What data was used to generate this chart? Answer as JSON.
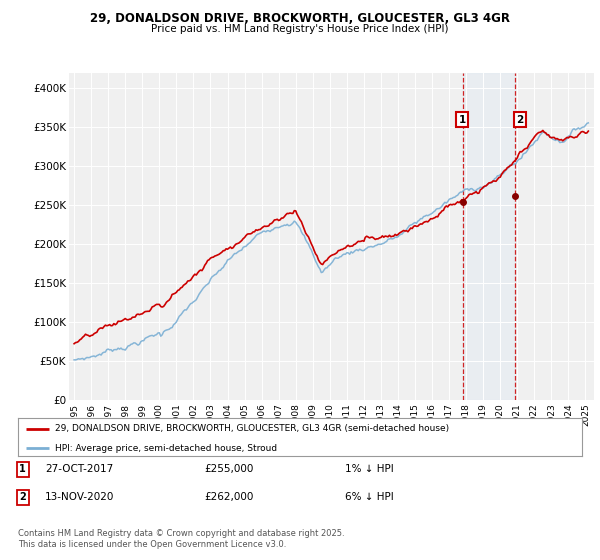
{
  "title": "29, DONALDSON DRIVE, BROCKWORTH, GLOUCESTER, GL3 4GR",
  "subtitle": "Price paid vs. HM Land Registry's House Price Index (HPI)",
  "ylabel_ticks": [
    "£0",
    "£50K",
    "£100K",
    "£150K",
    "£200K",
    "£250K",
    "£300K",
    "£350K",
    "£400K"
  ],
  "ytick_values": [
    0,
    50000,
    100000,
    150000,
    200000,
    250000,
    300000,
    350000,
    400000
  ],
  "ylim": [
    0,
    420000
  ],
  "xlim": [
    1994.7,
    2025.5
  ],
  "sale1_date": 2017.82,
  "sale1_price": 255000,
  "sale1_label": "1",
  "sale2_date": 2020.87,
  "sale2_price": 262000,
  "sale2_label": "2",
  "legend_property": "29, DONALDSON DRIVE, BROCKWORTH, GLOUCESTER, GL3 4GR (semi-detached house)",
  "legend_hpi": "HPI: Average price, semi-detached house, Stroud",
  "table_row1": [
    "1",
    "27-OCT-2017",
    "£255,000",
    "1% ↓ HPI"
  ],
  "table_row2": [
    "2",
    "13-NOV-2020",
    "£262,000",
    "6% ↓ HPI"
  ],
  "footnote": "Contains HM Land Registry data © Crown copyright and database right 2025.\nThis data is licensed under the Open Government Licence v3.0.",
  "hpi_color": "#7bafd4",
  "property_color": "#cc0000",
  "vline_color": "#cc0000",
  "shade_color": "#dce9f5",
  "background_color": "#ffffff",
  "plot_bg_color": "#f0f0f0"
}
